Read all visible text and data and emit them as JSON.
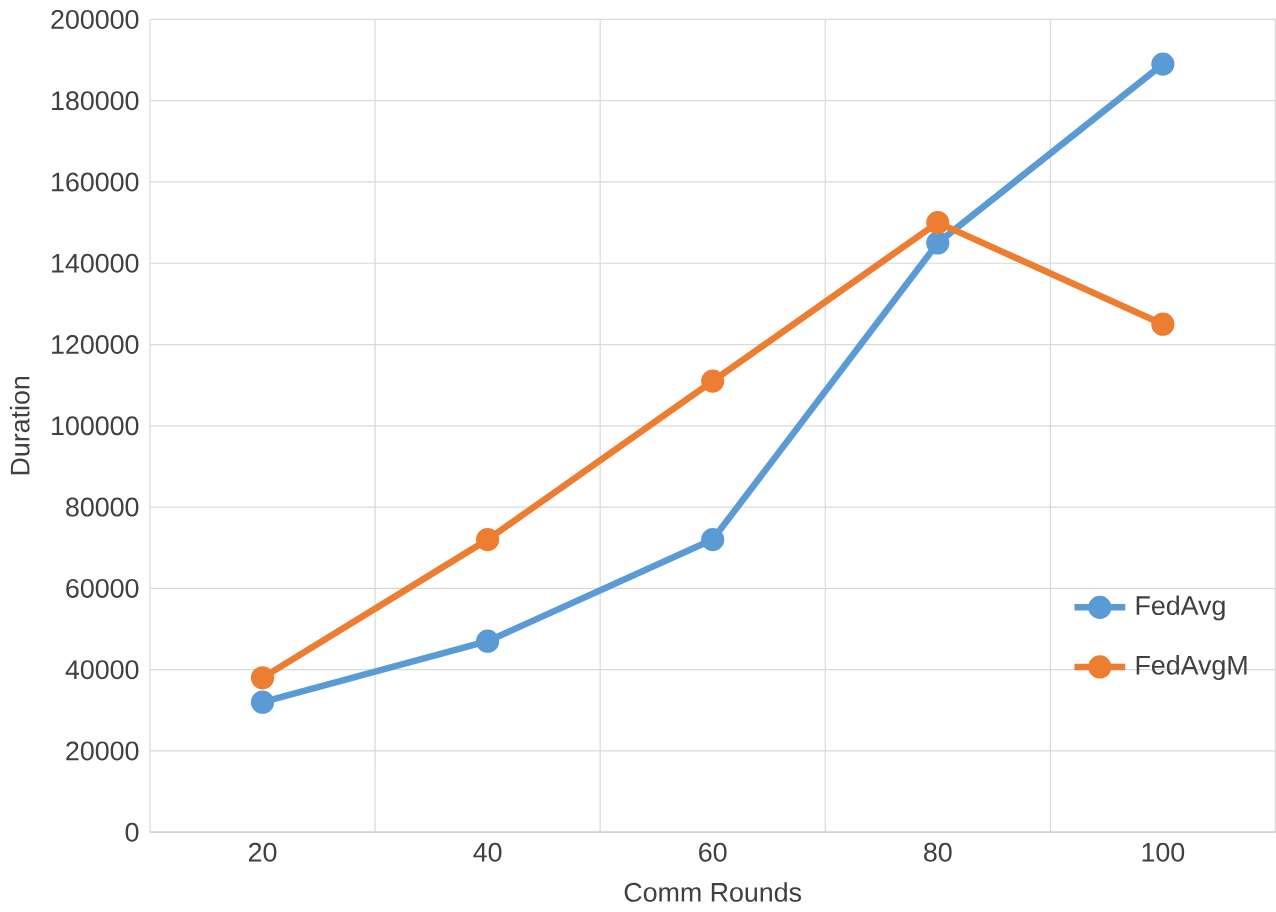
{
  "chart_data": {
    "type": "line",
    "xlabel": "Comm Rounds",
    "ylabel": "Duration",
    "categories": [
      "20",
      "40",
      "60",
      "80",
      "100"
    ],
    "series": [
      {
        "name": "FedAvg",
        "color": "#5b9bd5",
        "values": [
          32000,
          47000,
          72000,
          145000,
          189000
        ]
      },
      {
        "name": "FedAvgM",
        "color": "#ed7d31",
        "values": [
          38000,
          72000,
          111000,
          150000,
          125000
        ]
      }
    ],
    "ylim": [
      0,
      200000
    ],
    "yticks": [
      0,
      20000,
      40000,
      60000,
      80000,
      100000,
      120000,
      140000,
      160000,
      180000,
      200000
    ],
    "grid": true,
    "legend": "right",
    "marker": "circle",
    "line_style": "solid"
  }
}
